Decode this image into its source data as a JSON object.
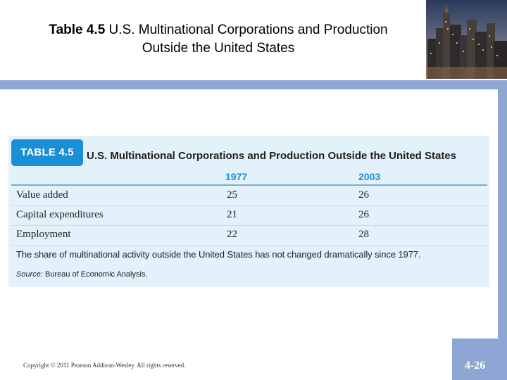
{
  "slide": {
    "title_bold": "Table 4.5",
    "title_rest": " U.S. Multinational Corporations and Production",
    "title_line2": "Outside the United States",
    "copyright": "Copyright © 2011 Pearson Addison-Wesley. All rights reserved.",
    "page_number": "4-26"
  },
  "table": {
    "badge": "TABLE 4.5",
    "heading": "U.S. Multinational Corporations and Production Outside the United States",
    "columns": [
      "1977",
      "2003"
    ],
    "rows": [
      {
        "label": "Value added",
        "values": [
          "25",
          "26"
        ]
      },
      {
        "label": "Capital expenditures",
        "values": [
          "21",
          "26"
        ]
      },
      {
        "label": "Employment",
        "values": [
          "22",
          "28"
        ]
      }
    ],
    "note": "The share of multinational activity outside the United States has not changed dramatically since 1977.",
    "source_label": "Source:",
    "source_text": " Bureau of Economic Analysis."
  },
  "colors": {
    "accent_blue": "#1a8fd6",
    "band_blue": "#8fa6d4",
    "table_bg": "#e3f1fb"
  }
}
